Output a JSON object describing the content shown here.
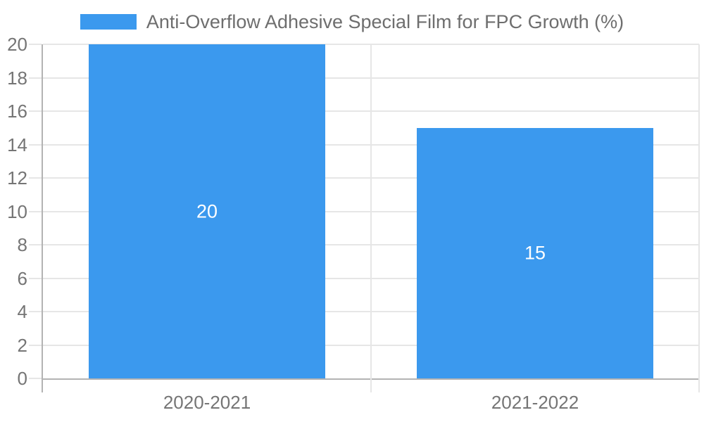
{
  "legend": {
    "label": "Anti-Overflow Adhesive Special Film for FPC Growth (%)"
  },
  "chart_data": {
    "type": "bar",
    "title": "Anti-Overflow Adhesive Special Film for FPC Growth (%)",
    "categories": [
      "2020-2021",
      "2021-2022"
    ],
    "values": [
      20,
      15
    ],
    "xlabel": "",
    "ylabel": "",
    "ylim": [
      0,
      20
    ],
    "yticks": [
      0,
      2,
      4,
      6,
      8,
      10,
      12,
      14,
      16,
      18,
      20
    ],
    "grid": true,
    "legend_position": "top",
    "bar_width_ratio": 0.723,
    "bar_labels": [
      "20",
      "15"
    ]
  },
  "colors": {
    "bar": "#3B99EE",
    "bar_label_text": "#ffffff",
    "legend_text": "#6e6e6e",
    "axis_text": "#757575",
    "grid_line": "#e6e6e6",
    "axis_line": "#b3b3b3",
    "background": "#ffffff"
  }
}
